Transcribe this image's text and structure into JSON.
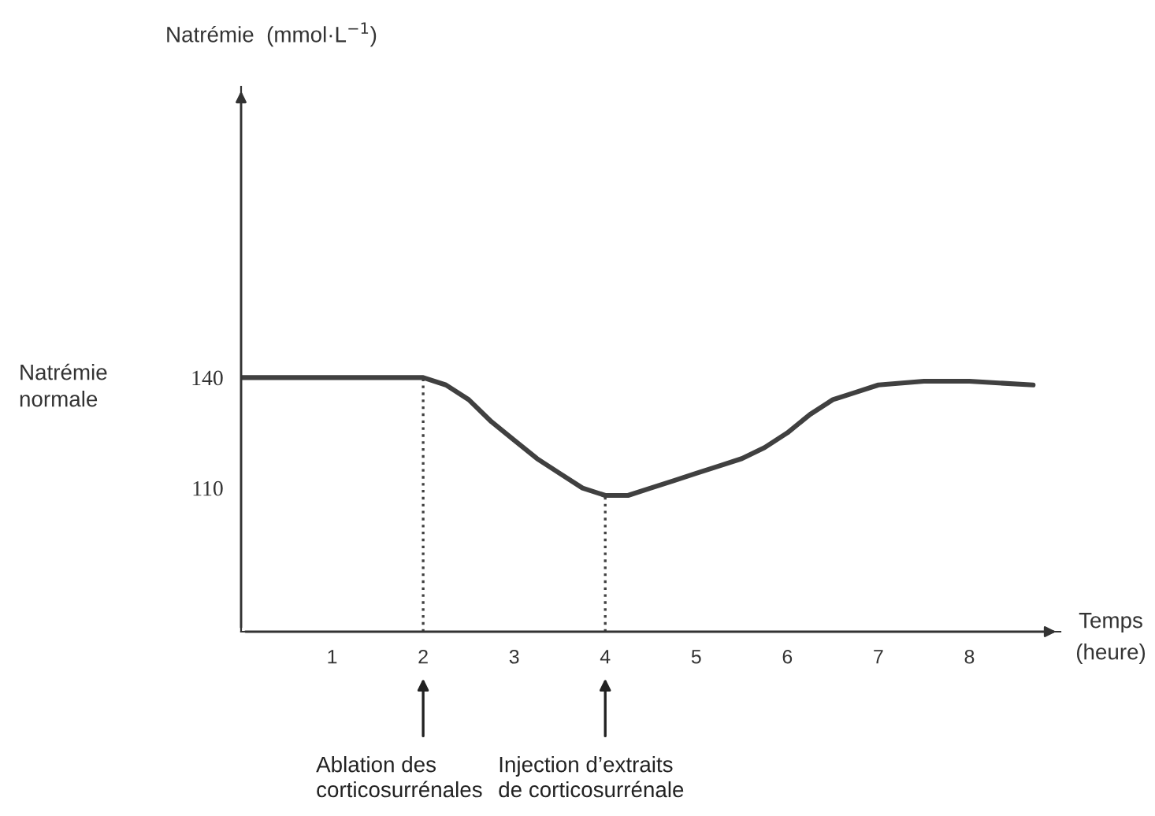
{
  "chart_data": {
    "type": "line",
    "ylabel": "Natrémie  (mmol·L$^{−1}$)",
    "xlabel": "Temps\n(heure)",
    "x": [
      0,
      1,
      2,
      2.25,
      2.5,
      2.75,
      3,
      3.25,
      3.5,
      3.75,
      4,
      4.25,
      4.5,
      4.75,
      5,
      5.25,
      5.5,
      5.75,
      6,
      6.25,
      6.5,
      6.75,
      7,
      7.5,
      8,
      8.7
    ],
    "series": [
      {
        "color": "#404040",
        "values": [
          140,
          140,
          140,
          138,
          134,
          128,
          123,
          118,
          114,
          110,
          108,
          108,
          110,
          112,
          114,
          116,
          118,
          121,
          125,
          130,
          134,
          136,
          138,
          139,
          139,
          138
        ]
      }
    ],
    "xlim": [
      0,
      9
    ],
    "ylim": [
      71,
      219
    ],
    "xticks": [
      1,
      2,
      3,
      4,
      5,
      6,
      7,
      8
    ],
    "yticks": [
      110,
      140
    ],
    "ref_lines": [
      {
        "axis": "x",
        "value": 2,
        "line_style": "dotted",
        "color": "#404040"
      },
      {
        "axis": "x",
        "value": 4,
        "line_style": "dotted",
        "color": "#404040"
      }
    ],
    "annotations": [
      "Ablation des\ncorticosurrénales",
      "Injection d’extraits\nde corticosurrénale",
      "Natrémie\nnormale"
    ],
    "grid": false,
    "marker": "none",
    "line_style": "solid"
  }
}
